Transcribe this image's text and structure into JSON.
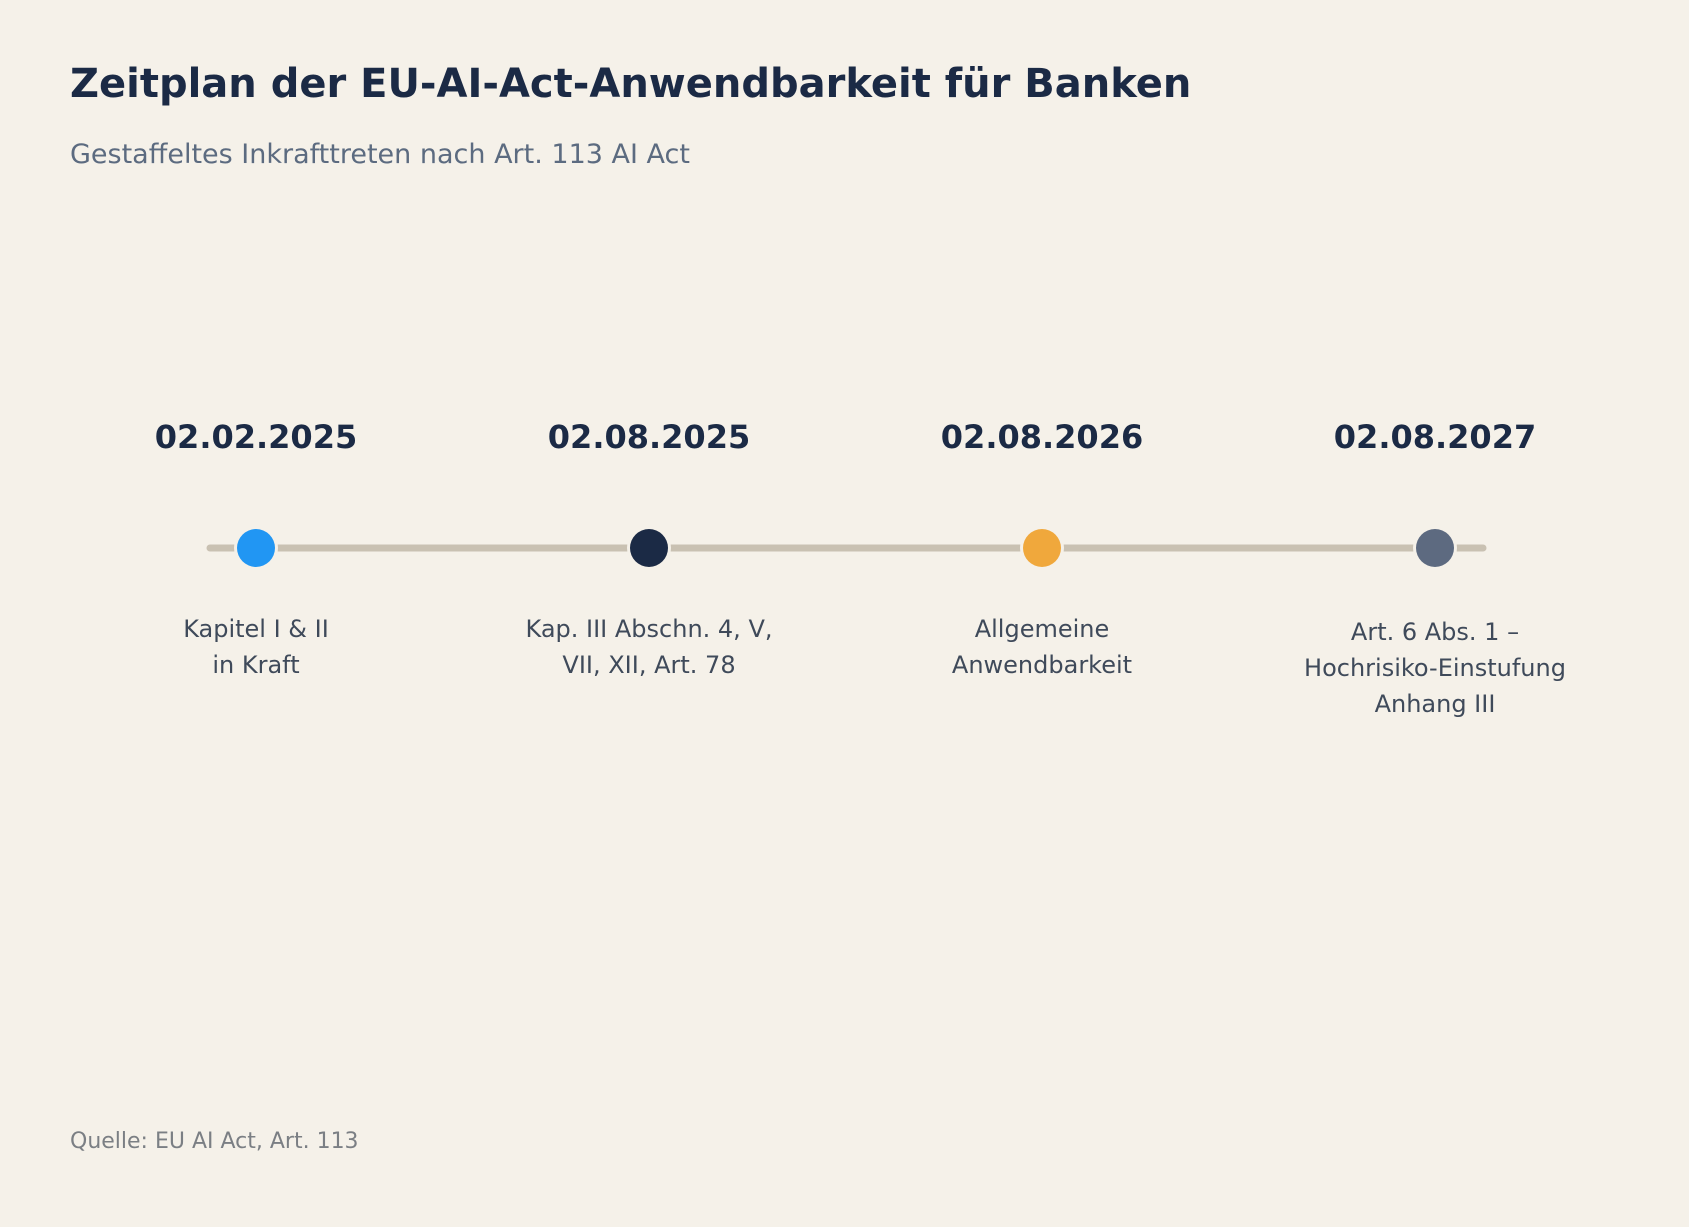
{
  "title": "Zeitplan der EU-AI-Act-Anwendbarkeit für Banken",
  "subtitle": "Gestaffeltes Inkrafttreten nach Art. 113 AI Act",
  "milestones": [
    {
      "date": "02.02.2025",
      "lines": [
        "Kapitel I & II",
        "in Kraft"
      ],
      "color": "#2196f3"
    },
    {
      "date": "02.08.2025",
      "lines": [
        "Kap. III Abschn. 4, V,",
        "VII, XII, Art. 78"
      ],
      "color": "#1b2a45"
    },
    {
      "date": "02.08.2026",
      "lines": [
        "Allgemeine",
        "Anwendbarkeit"
      ],
      "color": "#f0a83c"
    },
    {
      "date": "02.08.2027",
      "lines": [
        "Art. 6 Abs. 1 –",
        "Hochrisiko-Einstufung",
        "Anhang III"
      ],
      "color": "#5d6a80"
    }
  ],
  "line_color": "#c9c1b2",
  "source": "Quelle: EU AI Act, Art. 113"
}
